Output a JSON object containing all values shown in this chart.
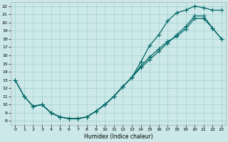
{
  "background_color": "#cce8e8",
  "grid_color": "#99cccc",
  "line_color": "#006666",
  "xlabel": "Humidex (Indice chaleur)",
  "xlim": [
    -0.5,
    23.5
  ],
  "ylim": [
    7.5,
    22.5
  ],
  "xticks": [
    0,
    1,
    2,
    3,
    4,
    5,
    6,
    7,
    8,
    9,
    10,
    11,
    12,
    13,
    14,
    15,
    16,
    17,
    18,
    19,
    20,
    21,
    22,
    23
  ],
  "yticks": [
    8,
    9,
    10,
    11,
    12,
    13,
    14,
    15,
    16,
    17,
    18,
    19,
    20,
    21,
    22
  ],
  "curve1_x": [
    0,
    1,
    2,
    3,
    4,
    5,
    6,
    7,
    8,
    9,
    10,
    11,
    12,
    13,
    14,
    15,
    16,
    17,
    18,
    19,
    20,
    21,
    22,
    23
  ],
  "curve1_y": [
    13,
    11,
    9.8,
    10,
    9,
    8.5,
    8.3,
    8.3,
    8.5,
    9.2,
    10.0,
    11.0,
    12.2,
    13.3,
    14.7,
    15.8,
    16.8,
    17.7,
    18.3,
    19.2,
    20.5,
    20.5,
    19.3,
    18.0
  ],
  "curve2_x": [
    0,
    1,
    2,
    3,
    4,
    5,
    6,
    7,
    8,
    9,
    10,
    11,
    12,
    13,
    14,
    15,
    16,
    17,
    18,
    19,
    20,
    21,
    22,
    23
  ],
  "curve2_y": [
    13,
    11,
    9.8,
    10,
    9,
    8.5,
    8.3,
    8.3,
    8.5,
    9.2,
    10.0,
    11.0,
    12.2,
    13.3,
    15.2,
    17.2,
    18.5,
    20.2,
    21.2,
    21.5,
    22.0,
    21.8,
    21.5,
    21.5
  ],
  "curve3_x": [
    2,
    3,
    4,
    5,
    6,
    7,
    8,
    9,
    10,
    11,
    12,
    13,
    14,
    15,
    16,
    17,
    18,
    19,
    20,
    21,
    22,
    23
  ],
  "curve3_y": [
    9.8,
    10,
    9,
    8.5,
    8.3,
    8.3,
    8.5,
    9.2,
    10.0,
    11.0,
    12.2,
    13.3,
    14.5,
    15.5,
    16.5,
    17.5,
    18.5,
    19.5,
    20.8,
    20.8,
    19.3,
    18.0
  ]
}
